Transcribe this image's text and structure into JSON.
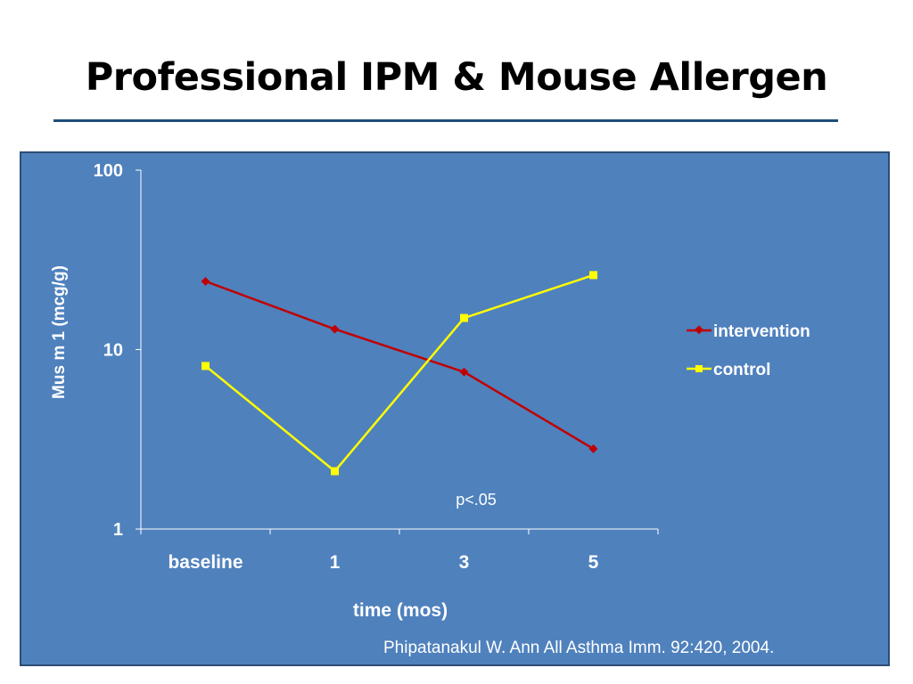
{
  "slide": {
    "title": "Professional IPM & Mouse Allergen",
    "source": "Phipatanakul W. Ann All Asthma Imm. 92:420, 2004."
  },
  "chart_data": {
    "type": "line",
    "xlabel": "time (mos)",
    "ylabel": "Mus m 1 (mcg/g)",
    "yscale": "log",
    "ylim": [
      1,
      100
    ],
    "yticks": [
      "1",
      "10",
      "100"
    ],
    "categories": [
      "baseline",
      "1",
      "3",
      "5"
    ],
    "series": [
      {
        "name": "intervention",
        "color": "#c00000",
        "marker": "diamond",
        "values": [
          24,
          13,
          7.5,
          2.8
        ]
      },
      {
        "name": "control",
        "color": "#ffff00",
        "marker": "square",
        "values": [
          8.1,
          2.1,
          15,
          26
        ]
      }
    ],
    "annotation": "p<.05",
    "legend_position": "right",
    "grid": false
  }
}
